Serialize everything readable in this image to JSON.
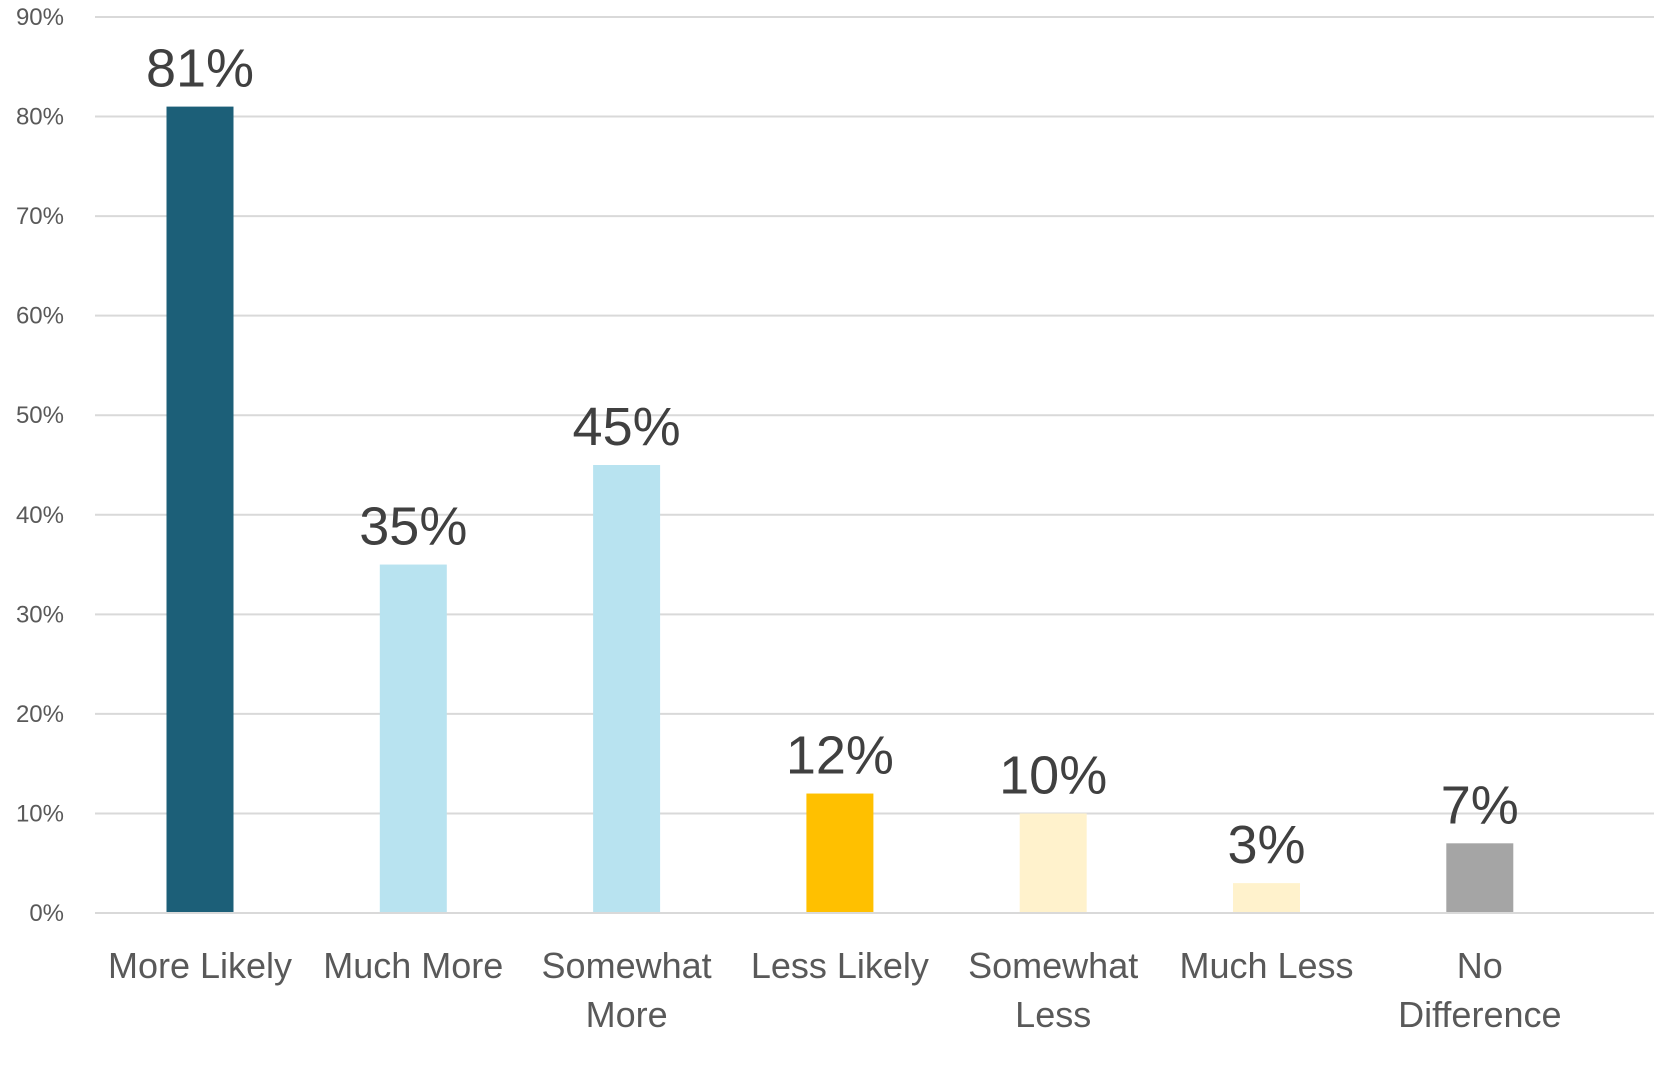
{
  "chart_data": {
    "type": "bar",
    "categories": [
      [
        "More Likely"
      ],
      [
        "Much More"
      ],
      [
        "Somewhat",
        "More"
      ],
      [
        "Less Likely"
      ],
      [
        "Somewhat",
        "Less"
      ],
      [
        "Much Less"
      ],
      [
        "No",
        "Difference"
      ]
    ],
    "values": [
      81,
      35,
      45,
      12,
      10,
      3,
      7
    ],
    "data_labels": [
      "81%",
      "35%",
      "45%",
      "12%",
      "10%",
      "3%",
      "7%"
    ],
    "bar_colors": [
      "#1c5f78",
      "#b8e3f0",
      "#b8e3f0",
      "#ffc000",
      "#fff2cc",
      "#fff2cc",
      "#a5a5a5"
    ],
    "ylim": [
      0,
      90
    ],
    "y_ticks": [
      0,
      10,
      20,
      30,
      40,
      50,
      60,
      70,
      80,
      90
    ],
    "y_tick_labels": [
      "0%",
      "10%",
      "20%",
      "30%",
      "40%",
      "50%",
      "60%",
      "70%",
      "80%",
      "90%"
    ],
    "grid": true,
    "legend": "none",
    "title": "",
    "xlabel": "",
    "ylabel": ""
  }
}
